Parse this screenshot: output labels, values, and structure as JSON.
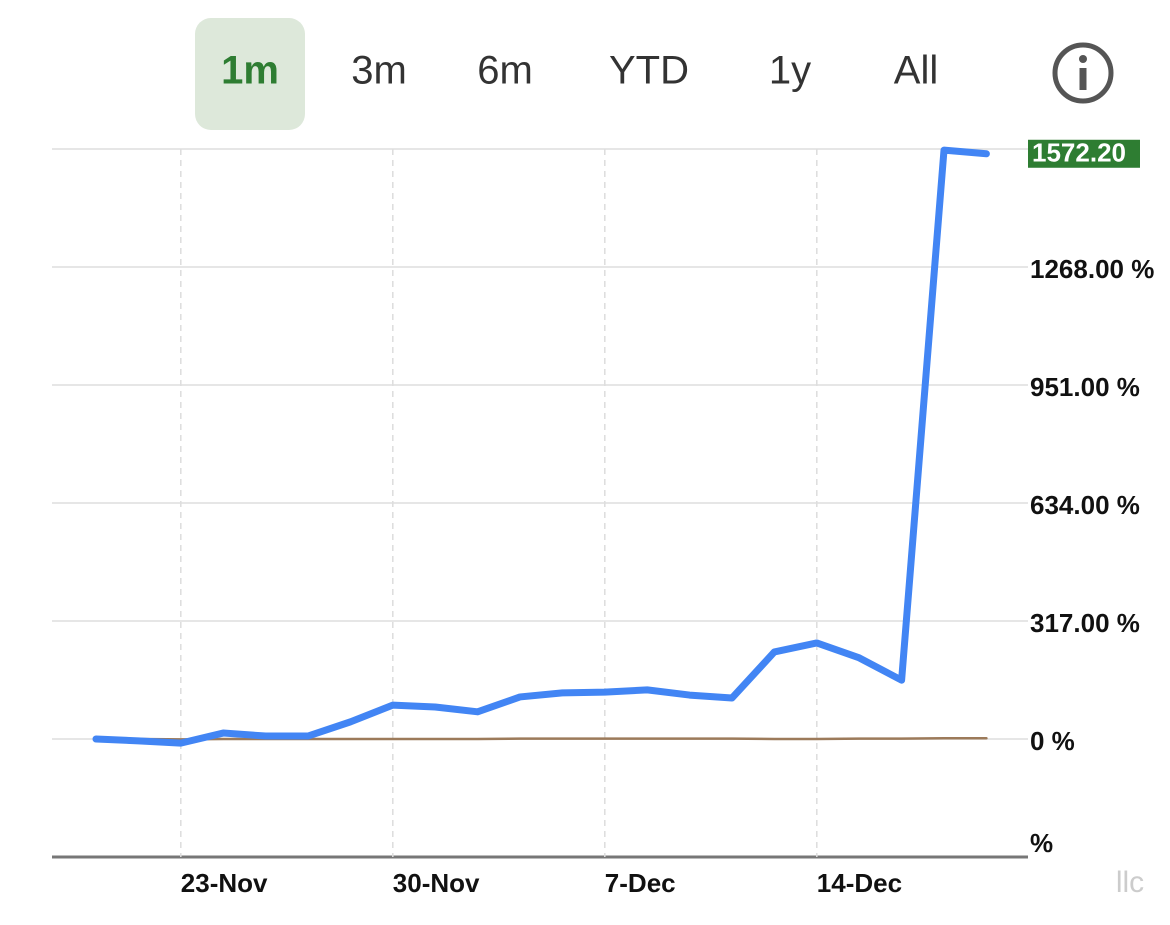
{
  "tabs": [
    "1m",
    "3m",
    "6m",
    "YTD",
    "1y",
    "All"
  ],
  "selected_tab": 0,
  "watermark": "llc",
  "chart_data": {
    "type": "line",
    "categories": [
      null,
      null,
      "23-Nov",
      null,
      null,
      null,
      null,
      "30-Nov",
      null,
      null,
      null,
      null,
      "7-Dec",
      null,
      null,
      null,
      null,
      "14-Dec",
      null,
      null,
      null,
      null
    ],
    "series": [
      {
        "color": "#4285f4",
        "values": [
          0,
          -5,
          -11,
          16,
          8,
          8,
          46,
          91,
          86,
          73,
          113,
          124,
          126,
          132,
          118,
          110,
          234,
          258,
          218,
          158,
          1582,
          1572.2
        ],
        "value_labels": [
          null,
          null,
          null,
          null,
          null,
          null,
          null,
          null,
          null,
          null,
          null,
          null,
          null,
          null,
          null,
          null,
          null,
          null,
          null,
          null,
          null,
          "1572.20"
        ]
      },
      {
        "color": "#9c7a5a",
        "values": [
          0,
          0,
          -1,
          0,
          0,
          0,
          0,
          0,
          0,
          0,
          1,
          1,
          1,
          1,
          1,
          1,
          0,
          0,
          1,
          1,
          2,
          2
        ]
      }
    ],
    "ylim": [
      -317,
      1585
    ],
    "yticks": [
      {
        "value": -317,
        "label": "%"
      },
      {
        "value": 0,
        "label": "0 %"
      },
      {
        "value": 317,
        "label": "317.00 %"
      },
      {
        "value": 634,
        "label": "634.00 %"
      },
      {
        "value": 951,
        "label": "951.00 %"
      },
      {
        "value": 1268,
        "label": "1268.00 %"
      }
    ],
    "grid": true
  }
}
